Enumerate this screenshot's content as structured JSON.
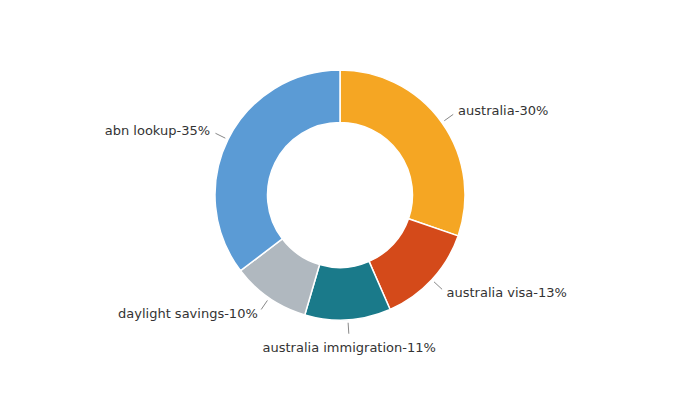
{
  "chart_data": {
    "type": "pie",
    "values": [
      30,
      13,
      11,
      10,
      35
    ],
    "value_labels": [
      "australia-30%",
      "australia visa-13%",
      "australia immigration-11%",
      "daylight savings-10%",
      "abn lookup-35%"
    ],
    "colors": [
      "#f5a623",
      "#d44a1a",
      "#1a7a8a",
      "#b0b8bf",
      "#5b9bd5"
    ],
    "data_labels": true
  }
}
